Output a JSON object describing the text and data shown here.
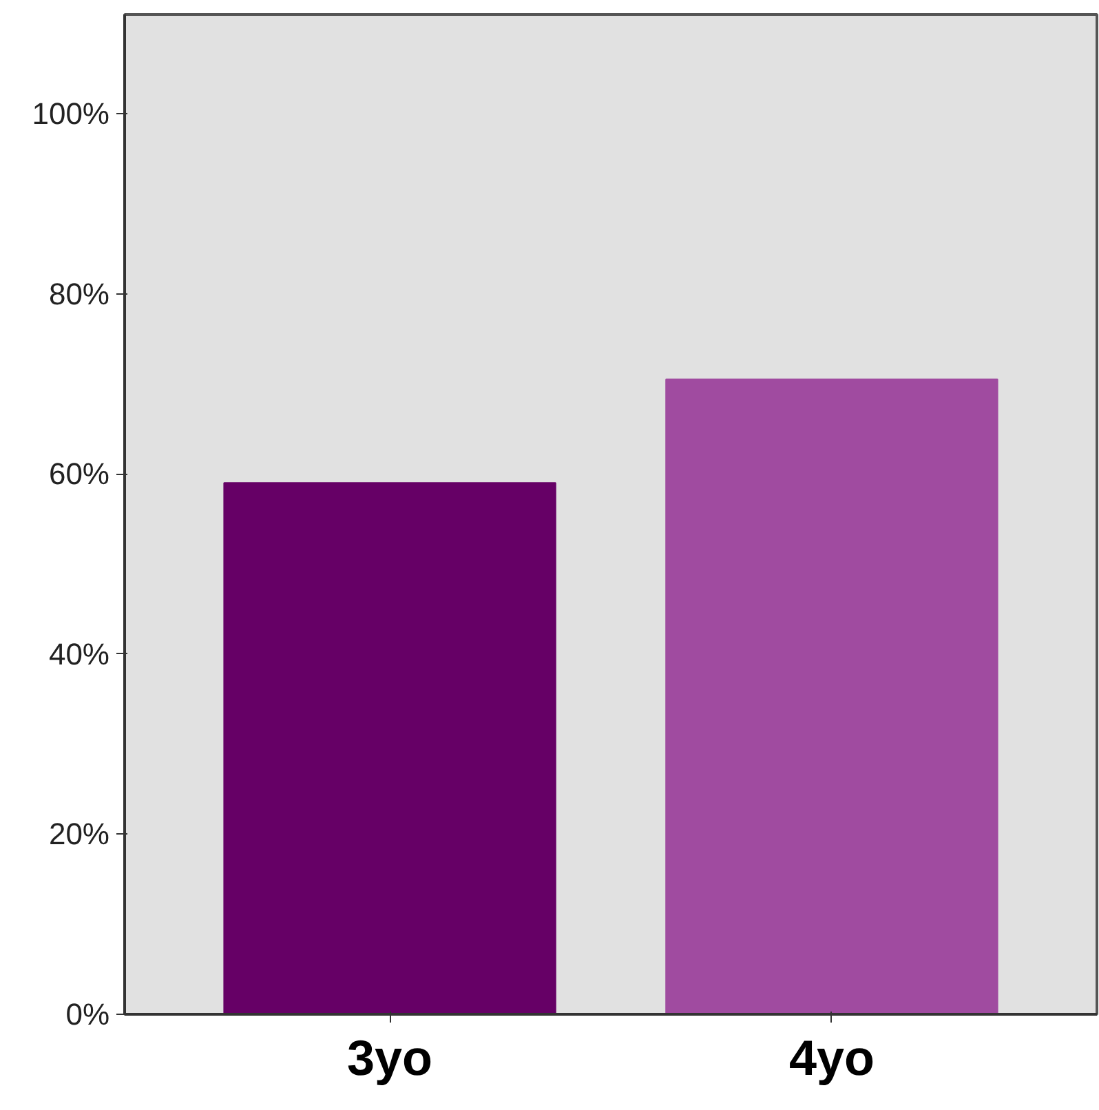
{
  "chart_data": {
    "type": "bar",
    "categories": [
      "3yo",
      "4yo"
    ],
    "values": [
      59,
      70.5
    ],
    "colors": [
      "#660066",
      "#a04ba0"
    ],
    "ylim": [
      0,
      111
    ],
    "yticks": [
      {
        "value": 0,
        "label": "0%"
      },
      {
        "value": 20,
        "label": "20%"
      },
      {
        "value": 40,
        "label": "40%"
      },
      {
        "value": 60,
        "label": "60%"
      },
      {
        "value": 80,
        "label": "80%"
      },
      {
        "value": 100,
        "label": "100%"
      }
    ],
    "grid": false
  }
}
